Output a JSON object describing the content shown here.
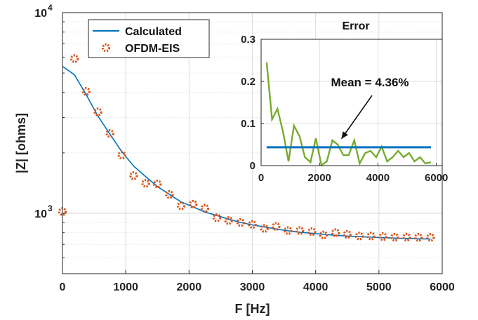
{
  "chart_data": [
    {
      "type": "line",
      "xlabel": "F [Hz]",
      "ylabel": "|Z| [ohms]",
      "xlim": [
        0,
        6000
      ],
      "ylim": [
        500,
        10000
      ],
      "yscale": "log",
      "xticks": [
        0,
        1000,
        2000,
        3000,
        4000,
        5000,
        6000
      ],
      "xtick_labels": [
        "0",
        "1000",
        "2000",
        "3000",
        "4000",
        "5000",
        "6000"
      ],
      "yticks": [
        1000,
        10000
      ],
      "ytick_labels": [
        {
          "base": "10",
          "exp": "3"
        },
        {
          "base": "10",
          "exp": "4"
        }
      ],
      "grid": true,
      "legend_position": "top-left",
      "series": [
        {
          "name": "Calculated",
          "style": "line",
          "color": "#0072BD",
          "x": [
            0,
            190,
            375,
            560,
            750,
            940,
            1125,
            1315,
            1500,
            1690,
            1875,
            2065,
            2250,
            2440,
            2625,
            2815,
            3000,
            3190,
            3375,
            3565,
            3750,
            3940,
            4125,
            4315,
            4500,
            4690,
            4875,
            5065,
            5250,
            5440,
            5625,
            5815
          ],
          "values": [
            5400,
            4900,
            3900,
            3050,
            2480,
            2020,
            1720,
            1520,
            1360,
            1240,
            1140,
            1075,
            1015,
            975,
            935,
            900,
            875,
            855,
            835,
            818,
            805,
            795,
            785,
            777,
            770,
            765,
            760,
            756,
            752,
            749,
            746,
            744
          ]
        },
        {
          "name": "OFDM-EIS",
          "style": "marker",
          "color": "#D95319",
          "x": [
            0,
            190,
            375,
            560,
            750,
            940,
            1125,
            1315,
            1500,
            1690,
            1875,
            2065,
            2250,
            2440,
            2625,
            2815,
            3000,
            3190,
            3375,
            3565,
            3750,
            3940,
            4125,
            4315,
            4500,
            4690,
            4875,
            5065,
            5250,
            5440,
            5625,
            5815
          ],
          "values": [
            1020,
            5900,
            4050,
            3200,
            2500,
            1950,
            1540,
            1410,
            1400,
            1240,
            1090,
            1110,
            1060,
            950,
            920,
            900,
            880,
            840,
            860,
            820,
            820,
            810,
            780,
            800,
            785,
            770,
            770,
            765,
            760,
            760,
            758,
            758
          ]
        }
      ]
    },
    {
      "type": "line",
      "title": "Error",
      "xlim": [
        0,
        6200
      ],
      "ylim": [
        0,
        0.3
      ],
      "xticks": [
        0,
        2000,
        4000,
        6000
      ],
      "xtick_labels": [
        "0",
        "2000",
        "4000",
        "6000"
      ],
      "yticks": [
        0,
        0.1,
        0.2,
        0.3
      ],
      "ytick_labels": [
        "0",
        "0.1",
        "0.2",
        "0.3"
      ],
      "grid": true,
      "annotation": {
        "text": "Mean = 4.36%",
        "points_to": {
          "x": 2750,
          "y": 0.0436
        }
      },
      "series": [
        {
          "style": "line",
          "color": "#77AC30",
          "x": [
            190,
            375,
            560,
            750,
            940,
            1125,
            1315,
            1500,
            1690,
            1875,
            2065,
            2250,
            2440,
            2625,
            2815,
            3000,
            3190,
            3375,
            3565,
            3750,
            3940,
            4125,
            4315,
            4500,
            4690,
            4875,
            5065,
            5250,
            5440,
            5625,
            5815
          ],
          "values": [
            0.245,
            0.11,
            0.135,
            0.08,
            0.01,
            0.095,
            0.07,
            0.02,
            0.008,
            0.065,
            0.001,
            0.01,
            0.06,
            0.05,
            0.025,
            0.025,
            0.06,
            0.005,
            0.03,
            0.035,
            0.02,
            0.045,
            0.01,
            0.02,
            0.035,
            0.02,
            0.03,
            0.01,
            0.02,
            0.005,
            0.008
          ]
        },
        {
          "style": "line",
          "color": "#0072BD",
          "x": [
            190,
            5815
          ],
          "values": [
            0.0436,
            0.0436
          ]
        }
      ]
    }
  ]
}
